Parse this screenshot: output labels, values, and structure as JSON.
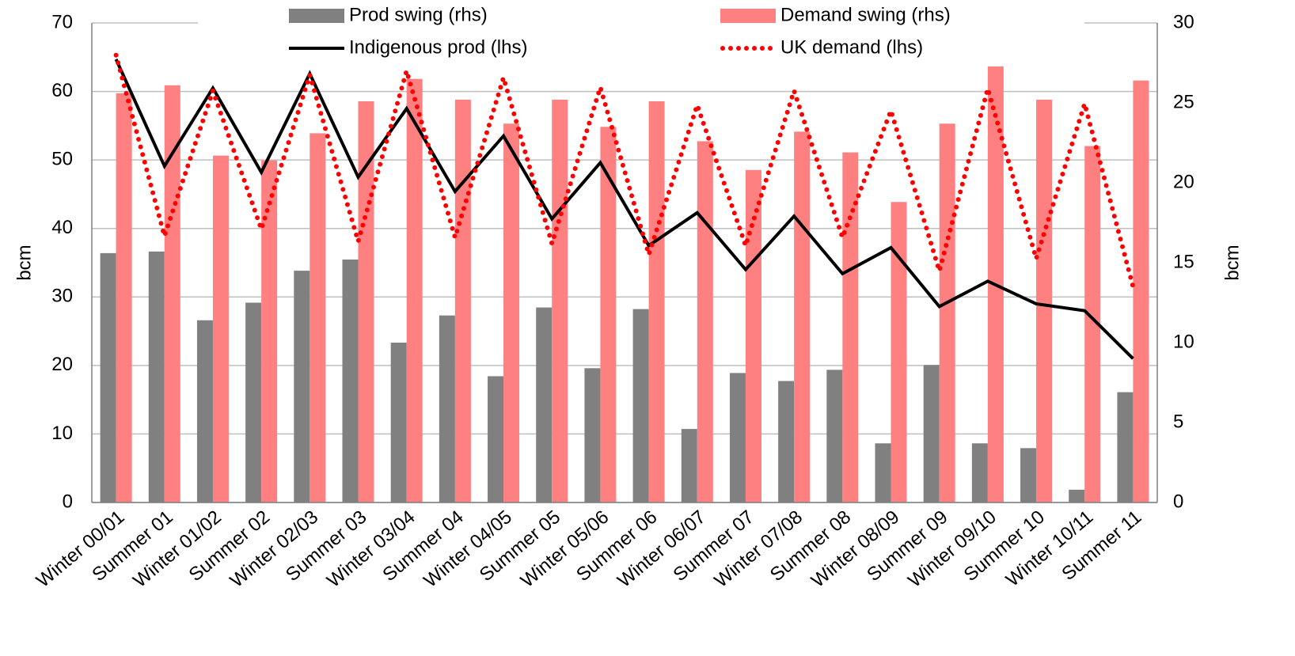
{
  "chart_data": {
    "type": "bar",
    "categories": [
      "Winter 00/01",
      "Summer 01",
      "Winter 01/02",
      "Summer 02",
      "Winter 02/03",
      "Summer 03",
      "Winter 03/04",
      "Summer 04",
      "Winter 04/05",
      "Summer 05",
      "Winter 05/06",
      "Summer 06",
      "Winter 06/07",
      "Summer 07",
      "Winter 07/08",
      "Summer 08",
      "Winter 08/09",
      "Summer 09",
      "Winter 09/10",
      "Summer 10",
      "Winter 10/11",
      "Summer 11"
    ],
    "y_label": "bcm",
    "y2_label": "bcm",
    "ylim": [
      0,
      70
    ],
    "yticks": [
      0,
      10,
      20,
      30,
      40,
      50,
      60,
      70
    ],
    "y2lim": [
      0,
      30
    ],
    "y2ticks": [
      0,
      5,
      10,
      15,
      20,
      25,
      30
    ],
    "grid": true,
    "series": [
      {
        "name": "Prod swing (rhs)",
        "type": "bar",
        "axis": "y2",
        "color": "#808080",
        "values": [
          15.6,
          15.7,
          11.4,
          12.5,
          14.5,
          15.2,
          10.0,
          11.7,
          7.9,
          12.2,
          8.4,
          12.1,
          4.6,
          8.1,
          7.6,
          8.3,
          3.7,
          8.6,
          3.7,
          3.4,
          0.8,
          6.9
        ]
      },
      {
        "name": "Demand swing (rhs)",
        "type": "bar",
        "axis": "y2",
        "color": "#ff8080",
        "values": [
          25.6,
          26.1,
          21.7,
          21.4,
          23.1,
          25.1,
          26.5,
          25.2,
          23.7,
          25.2,
          23.5,
          25.1,
          22.6,
          20.8,
          23.2,
          21.9,
          18.8,
          23.7,
          27.3,
          25.2,
          22.3,
          26.4
        ]
      },
      {
        "name": "Indigenous prod (lhs)",
        "type": "line",
        "style": "solid",
        "color": "#000000",
        "values": [
          64.7,
          49.1,
          60.5,
          48.2,
          62.6,
          47.5,
          57.5,
          45.4,
          53.5,
          41.4,
          49.6,
          37.5,
          42.3,
          34.0,
          41.8,
          33.4,
          37.2,
          28.6,
          32.3,
          29.0,
          28.0,
          21.0
        ]
      },
      {
        "name": "UK demand (lhs)",
        "type": "line",
        "style": "dotted",
        "color": "#ff0000",
        "values": [
          65.3,
          38.9,
          60.1,
          39.9,
          62.4,
          38.1,
          63.0,
          38.7,
          62.0,
          37.8,
          60.6,
          36.2,
          58.0,
          37.5,
          60.1,
          38.7,
          57.2,
          33.8,
          60.4,
          35.6,
          58.2,
          31.5
        ]
      }
    ]
  }
}
